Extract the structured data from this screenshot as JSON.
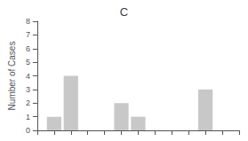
{
  "chart_data": {
    "type": "bar",
    "title": "C",
    "ylabel": "Number of Cases",
    "x": [
      1,
      2,
      5,
      6,
      10
    ],
    "values": [
      1,
      4,
      2,
      1,
      3
    ],
    "color": "#c8c8c8",
    "xlim": [
      0,
      12
    ],
    "xticks": [
      0,
      1,
      2,
      3,
      4,
      5,
      6,
      7,
      8,
      9,
      10,
      11,
      12
    ],
    "ylim": [
      0,
      8
    ],
    "yticks": [
      0,
      1,
      2,
      3,
      4,
      5,
      6,
      7,
      8
    ],
    "grid": false,
    "tick_labels": "y"
  }
}
